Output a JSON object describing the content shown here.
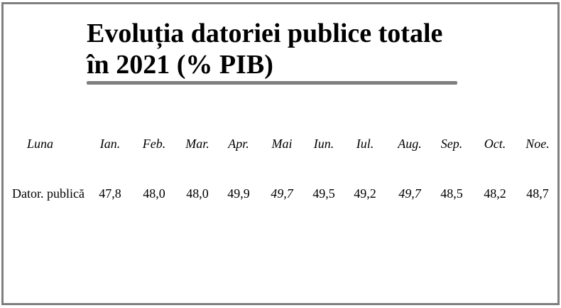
{
  "title": {
    "line1": "Evoluția datoriei publice totale",
    "line2": "în 2021 (% PIB)"
  },
  "table": {
    "row_header_label": "Luna",
    "row_label": "Dator. publică",
    "months": [
      "Ian.",
      "Feb.",
      "Mar.",
      "Apr.",
      "Mai",
      "Iun.",
      "Iul.",
      "Aug.",
      "Sep.",
      "Oct.",
      "Noe."
    ],
    "values": [
      "47,8",
      "48,0",
      "48,0",
      "49,9",
      "49,7",
      "49,5",
      "49,2",
      "49,7",
      "48,5",
      "48,2",
      "48,7"
    ]
  },
  "chart_data": {
    "type": "table",
    "title": "Evoluția datoriei publice totale în 2021 (% PIB)",
    "categories": [
      "Ian.",
      "Feb.",
      "Mar.",
      "Apr.",
      "Mai",
      "Iun.",
      "Iul.",
      "Aug.",
      "Sep.",
      "Oct.",
      "Noe."
    ],
    "series": [
      {
        "name": "Dator. publică",
        "values": [
          47.8,
          48.0,
          48.0,
          49.9,
          49.7,
          49.5,
          49.2,
          49.7,
          48.5,
          48.2,
          48.7
        ]
      }
    ]
  }
}
